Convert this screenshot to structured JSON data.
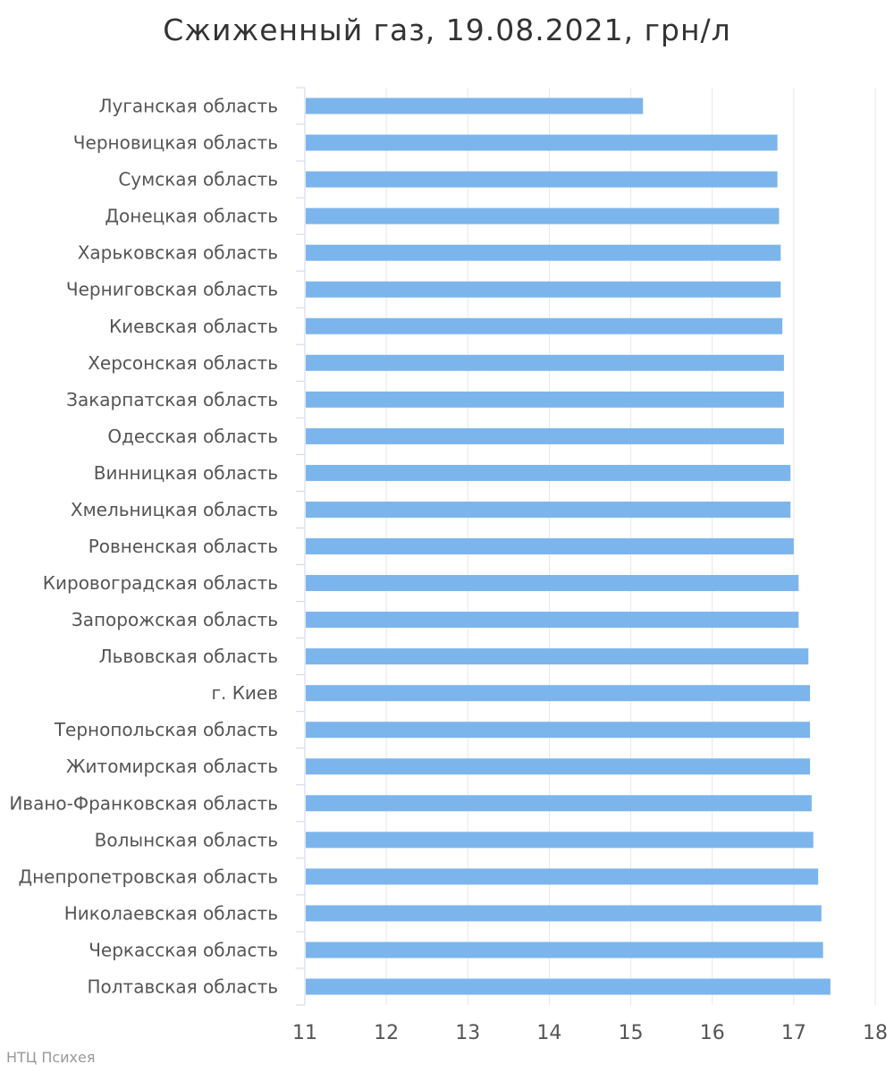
{
  "chart_data": {
    "type": "bar",
    "orientation": "horizontal",
    "title": "Сжиженный газ, 19.08.2021, грн/л",
    "xlim": [
      11,
      18
    ],
    "xticks": [
      11,
      12,
      13,
      14,
      15,
      16,
      17,
      18
    ],
    "grid": "vertical",
    "categories": [
      "Луганская область",
      "Черновицкая область",
      "Сумская область",
      "Донецкая область",
      "Харьковская область",
      "Черниговская область",
      "Киевская область",
      "Херсонская область",
      "Закарпатская область",
      "Одесская область",
      "Винницкая область",
      "Хмельницкая область",
      "Ровненская область",
      "Кировоградская область",
      "Запорожская область",
      "Львовская область",
      "г. Киев",
      "Тернопольская область",
      "Житомирская область",
      "Ивано-Франковская область",
      "Волынская область",
      "Днепропетровская область",
      "Николаевская область",
      "Черкасская область",
      "Полтавская область"
    ],
    "values": [
      15.15,
      16.8,
      16.8,
      16.82,
      16.84,
      16.84,
      16.86,
      16.88,
      16.88,
      16.88,
      16.96,
      16.96,
      17.0,
      17.06,
      17.06,
      17.18,
      17.2,
      17.2,
      17.2,
      17.22,
      17.24,
      17.3,
      17.34,
      17.36,
      17.45
    ],
    "bar_color": "#7cb5ec"
  },
  "credit": "НТЦ Психея"
}
